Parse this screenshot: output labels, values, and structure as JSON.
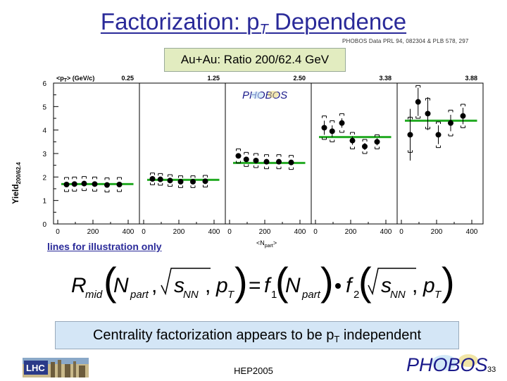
{
  "title": {
    "main": "Factorization: p",
    "sub": "T",
    "rest": " Dependence"
  },
  "citation": "PHOBOS Data PRL 94, 082304 & PLB 578, 297",
  "subtitle": "Au+Au: Ratio 200/62.4 GeV",
  "annotation": "lines for illustration only",
  "conclusion": {
    "before": "Centrality factorization appears to be p",
    "sub": "T",
    "after": " independent"
  },
  "footer": {
    "conference": "HEP2005",
    "page": "33",
    "left_logo_text": "LHC",
    "right_logo_text": "PHOBOS"
  },
  "colors": {
    "title": "#2a2a99",
    "fit_line": "#22aa22",
    "subtitle_bg": "#e2ecc0",
    "conclusion_bg": "#d4e6f6"
  },
  "chart_data": {
    "type": "scatter",
    "ylabel": "Yield",
    "ylabel_sub": "200/62.4",
    "xlabel": "<N",
    "xlabel_sub": "part",
    "xlabel_end": ">",
    "panel_header_label": "<p",
    "panel_header_sub": "T",
    "panel_header_unit": "> (GeV/c)",
    "ylim": [
      0,
      6
    ],
    "yticks": [
      0,
      1,
      2,
      3,
      4,
      5,
      6
    ],
    "xlim": [
      0,
      440
    ],
    "xticks": [
      0,
      200,
      400
    ],
    "panels": [
      {
        "pt": "0.25",
        "x": [
          50,
          95,
          150,
          210,
          280,
          350
        ],
        "y": [
          1.68,
          1.7,
          1.72,
          1.7,
          1.66,
          1.68
        ],
        "yerr": [
          0.05,
          0.05,
          0.05,
          0.05,
          0.05,
          0.05
        ],
        "sys": [
          0.3,
          0.3,
          0.3,
          0.3,
          0.3,
          0.3
        ],
        "fit": 1.7
      },
      {
        "pt": "1.25",
        "x": [
          50,
          95,
          150,
          210,
          280,
          350
        ],
        "y": [
          1.92,
          1.9,
          1.85,
          1.8,
          1.8,
          1.82
        ],
        "yerr": [
          0.05,
          0.05,
          0.05,
          0.05,
          0.05,
          0.05
        ],
        "sys": [
          0.25,
          0.25,
          0.25,
          0.25,
          0.25,
          0.25
        ],
        "fit": 1.88
      },
      {
        "pt": "2.50",
        "x": [
          50,
          95,
          150,
          210,
          280,
          350
        ],
        "y": [
          2.9,
          2.75,
          2.7,
          2.65,
          2.65,
          2.62
        ],
        "yerr": [
          0.07,
          0.07,
          0.07,
          0.07,
          0.07,
          0.07
        ],
        "sys": [
          0.3,
          0.3,
          0.3,
          0.3,
          0.3,
          0.3
        ],
        "fit": 2.6
      },
      {
        "pt": "3.38",
        "x": [
          50,
          95,
          150,
          210,
          280,
          350
        ],
        "y": [
          4.1,
          3.95,
          4.3,
          3.55,
          3.3,
          3.5
        ],
        "yerr": [
          0.3,
          0.25,
          0.2,
          0.18,
          0.15,
          0.15
        ],
        "sys": [
          0.5,
          0.45,
          0.4,
          0.35,
          0.3,
          0.3
        ],
        "fit": 3.7
      },
      {
        "pt": "3.88",
        "x": [
          50,
          95,
          150,
          210,
          280,
          350
        ],
        "y": [
          3.8,
          5.2,
          4.7,
          3.8,
          4.3,
          4.6
        ],
        "yerr": [
          1.1,
          0.6,
          0.7,
          0.4,
          0.35,
          0.35
        ],
        "sys": [
          0.75,
          0.7,
          0.65,
          0.55,
          0.55,
          0.5
        ],
        "fit": 4.4
      }
    ]
  }
}
